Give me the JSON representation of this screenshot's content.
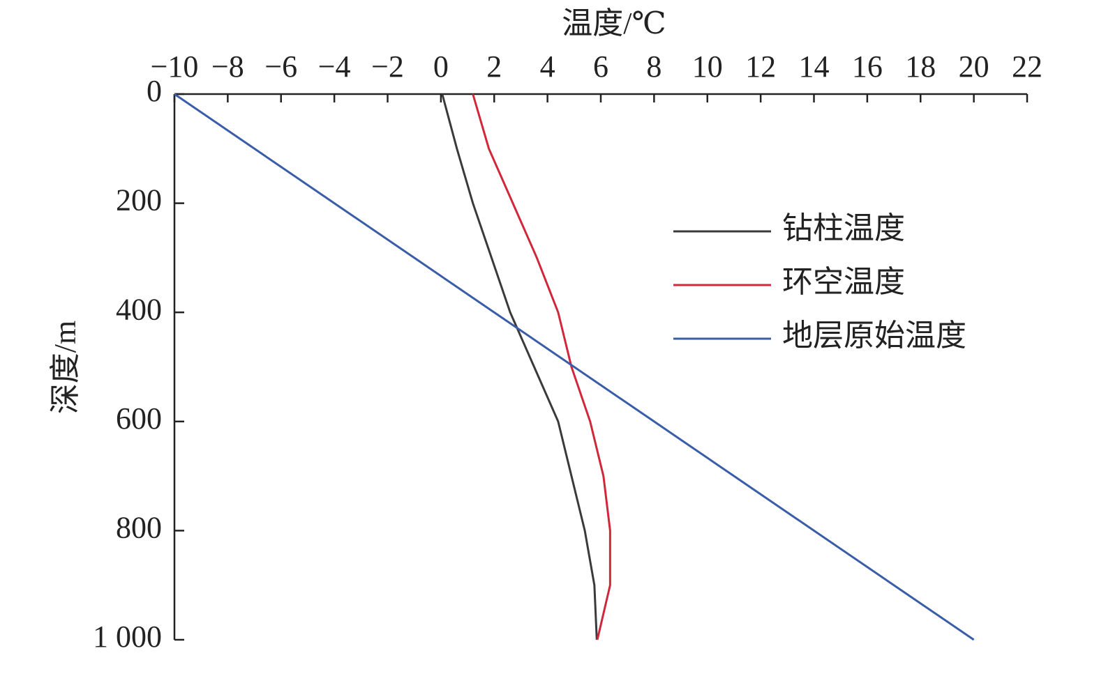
{
  "chart_data": {
    "type": "line",
    "x_label": "温度/℃",
    "y_label": "深度/m",
    "y": [
      0,
      100,
      200,
      300,
      400,
      500,
      600,
      700,
      800,
      900,
      1000
    ],
    "series": [
      {
        "name": "钻柱温度",
        "color": "#3a3a3a",
        "values": [
          0.05,
          0.6,
          1.2,
          1.9,
          2.6,
          3.5,
          4.4,
          4.9,
          5.4,
          5.76,
          5.85
        ]
      },
      {
        "name": "环空温度",
        "color": "#d0283a",
        "values": [
          1.2,
          1.8,
          2.7,
          3.6,
          4.4,
          4.9,
          5.6,
          6.1,
          6.35,
          6.35,
          5.87
        ]
      },
      {
        "name": "地层原始温度",
        "color": "#3a5da8",
        "values": [
          -10,
          -7,
          -4,
          -1,
          2,
          5,
          8,
          11,
          14,
          17,
          20
        ]
      }
    ],
    "xlim": [
      -10,
      22
    ],
    "xticks": [
      {
        "value": -10,
        "label": "−10"
      },
      {
        "value": -8,
        "label": "−8"
      },
      {
        "value": -6,
        "label": "−6"
      },
      {
        "value": -4,
        "label": "−4"
      },
      {
        "value": -2,
        "label": "−2"
      },
      0,
      2,
      4,
      6,
      8,
      10,
      12,
      14,
      16,
      18,
      20,
      22
    ],
    "ylim": [
      0,
      1000
    ],
    "yticks": [
      0,
      200,
      400,
      600,
      800,
      {
        "value": 1000,
        "label": "1 000"
      }
    ],
    "legend": "right"
  }
}
